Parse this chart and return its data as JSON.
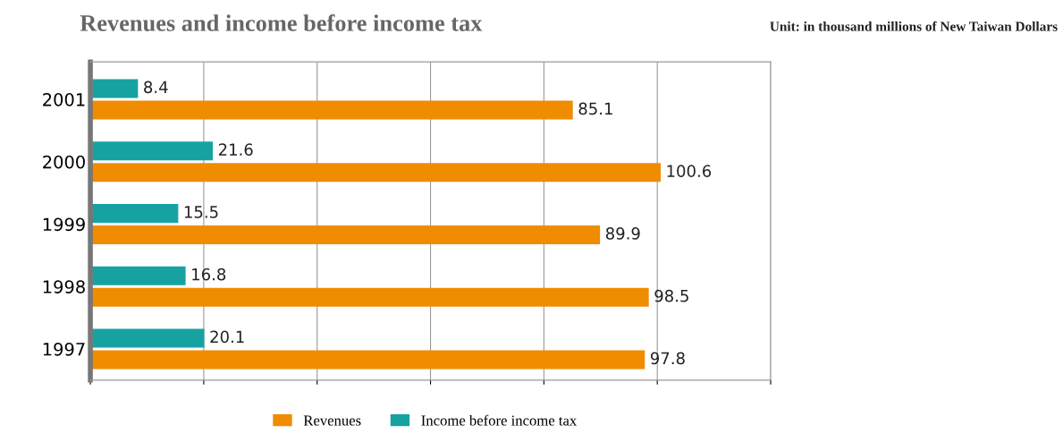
{
  "chart_data": {
    "type": "bar",
    "orientation": "horizontal",
    "title": "Revenues and income before income tax",
    "subtitle": "Unit: in thousand millions of New Taiwan Dollars",
    "categories": [
      "2001",
      "2000",
      "1999",
      "1998",
      "1997"
    ],
    "series": [
      {
        "name": "Revenues",
        "color": "#f08c00",
        "values": [
          85.1,
          100.6,
          89.9,
          98.5,
          97.8
        ]
      },
      {
        "name": "Income before income tax",
        "color": "#17a2a2",
        "values": [
          8.4,
          21.6,
          15.5,
          16.8,
          20.1
        ]
      }
    ],
    "xlim": [
      0,
      120
    ],
    "xticks": [
      {
        "value": 0,
        "label": null
      },
      {
        "value": 20,
        "label": null
      },
      {
        "value": 40,
        "label": null
      },
      {
        "value": 60,
        "label": null
      },
      {
        "value": 80,
        "label": null
      },
      {
        "value": 100,
        "label": null
      },
      {
        "value": 120,
        "label": null
      }
    ],
    "tick_labels": "y",
    "grid": "x",
    "legend": "bottom",
    "data_labels": true
  }
}
